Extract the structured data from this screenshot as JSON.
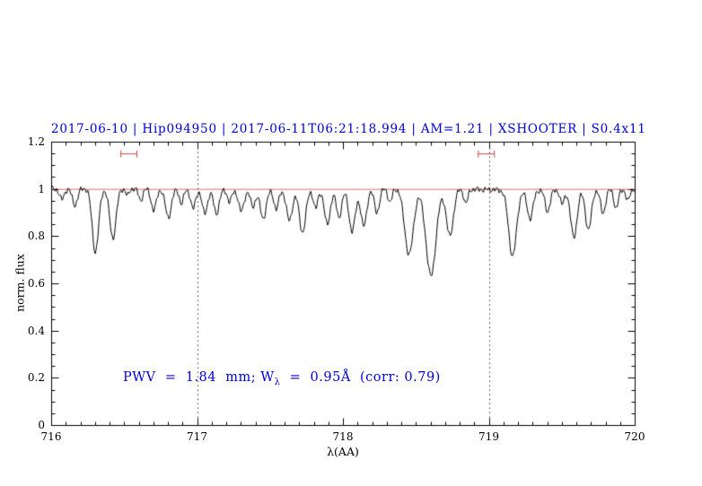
{
  "annotation": {
    "part1": "PWV  =  1.84  mm; W",
    "sub": "λ",
    "part2": "  =  0.95Å  (corr: 0.79)"
  },
  "chart_data": {
    "type": "line",
    "title": "2017-06-10 | Hip094950 | 2017-06-11T06:21:18.994 | AM=1.21 | XSHOOTER | S0.4x11",
    "xlabel": "λ(AA)",
    "ylabel": "norm. flux",
    "xlim": [
      716,
      720
    ],
    "ylim": [
      0,
      1.2
    ],
    "x_major_ticks": [
      716,
      717,
      718,
      719,
      720
    ],
    "x_tick_labels": [
      "716",
      "717",
      "718",
      "719",
      "720"
    ],
    "y_major_ticks": [
      0,
      0.2,
      0.4,
      0.6,
      0.8,
      1,
      1.2
    ],
    "y_tick_labels": [
      "0",
      "0.2",
      "0.4",
      "0.6",
      "0.8",
      "1",
      "1.2"
    ],
    "x_minor_step": 0.1,
    "y_minor_step": 0.05,
    "grid": false,
    "legend": null,
    "series_color": "#000000",
    "continuum_level": 1.0,
    "continuum_color": "#cc3333",
    "dotted_vlines": [
      717,
      719
    ],
    "dotted_vline_color": "#333333",
    "red_markers": [
      {
        "x": 716.53,
        "y": 1.15,
        "half_width": 0.055
      },
      {
        "x": 718.98,
        "y": 1.15,
        "half_width": 0.055
      }
    ],
    "marker_color": "#cc4444",
    "sampling_step": 0.004,
    "absorption_lines": [
      {
        "c": 716.07,
        "d": 0.045,
        "w": 0.016
      },
      {
        "c": 716.16,
        "d": 0.07,
        "w": 0.018
      },
      {
        "c": 716.3,
        "d": 0.27,
        "w": 0.022
      },
      {
        "c": 716.42,
        "d": 0.21,
        "w": 0.022
      },
      {
        "c": 716.52,
        "d": 0.03,
        "w": 0.012
      },
      {
        "c": 716.61,
        "d": 0.05,
        "w": 0.014
      },
      {
        "c": 716.7,
        "d": 0.09,
        "w": 0.018
      },
      {
        "c": 716.8,
        "d": 0.12,
        "w": 0.02
      },
      {
        "c": 716.89,
        "d": 0.06,
        "w": 0.014
      },
      {
        "c": 716.97,
        "d": 0.08,
        "w": 0.016
      },
      {
        "c": 717.05,
        "d": 0.1,
        "w": 0.018
      },
      {
        "c": 717.13,
        "d": 0.1,
        "w": 0.018
      },
      {
        "c": 717.22,
        "d": 0.05,
        "w": 0.014
      },
      {
        "c": 717.3,
        "d": 0.09,
        "w": 0.018
      },
      {
        "c": 717.38,
        "d": 0.07,
        "w": 0.016
      },
      {
        "c": 717.45,
        "d": 0.12,
        "w": 0.02
      },
      {
        "c": 717.54,
        "d": 0.08,
        "w": 0.016
      },
      {
        "c": 717.63,
        "d": 0.13,
        "w": 0.02
      },
      {
        "c": 717.72,
        "d": 0.18,
        "w": 0.022
      },
      {
        "c": 717.81,
        "d": 0.08,
        "w": 0.015
      },
      {
        "c": 717.89,
        "d": 0.15,
        "w": 0.02
      },
      {
        "c": 717.97,
        "d": 0.12,
        "w": 0.018
      },
      {
        "c": 718.06,
        "d": 0.18,
        "w": 0.022
      },
      {
        "c": 718.14,
        "d": 0.16,
        "w": 0.02
      },
      {
        "c": 718.23,
        "d": 0.1,
        "w": 0.018
      },
      {
        "c": 718.32,
        "d": 0.06,
        "w": 0.014
      },
      {
        "c": 718.45,
        "d": 0.28,
        "w": 0.03
      },
      {
        "c": 718.6,
        "d": 0.37,
        "w": 0.034
      },
      {
        "c": 718.73,
        "d": 0.2,
        "w": 0.024
      },
      {
        "c": 718.84,
        "d": 0.06,
        "w": 0.014
      },
      {
        "c": 719.16,
        "d": 0.28,
        "w": 0.027
      },
      {
        "c": 719.28,
        "d": 0.12,
        "w": 0.02
      },
      {
        "c": 719.4,
        "d": 0.09,
        "w": 0.017
      },
      {
        "c": 719.5,
        "d": 0.06,
        "w": 0.014
      },
      {
        "c": 719.58,
        "d": 0.2,
        "w": 0.022
      },
      {
        "c": 719.68,
        "d": 0.17,
        "w": 0.02
      },
      {
        "c": 719.78,
        "d": 0.1,
        "w": 0.017
      },
      {
        "c": 719.87,
        "d": 0.08,
        "w": 0.015
      },
      {
        "c": 719.95,
        "d": 0.05,
        "w": 0.013
      }
    ]
  }
}
